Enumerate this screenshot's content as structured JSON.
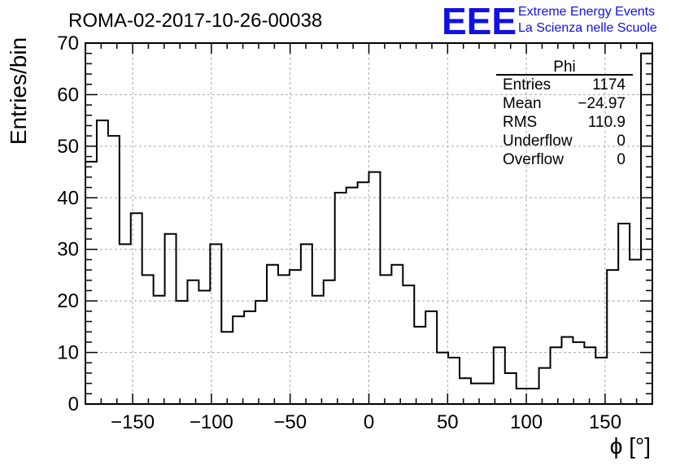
{
  "chart_data": {
    "type": "bar",
    "title": "ROMA-02-2017-10-26-00038",
    "xlabel": "ϕ [°]",
    "ylabel": "Entries/bin",
    "xlim": [
      -180,
      180
    ],
    "ylim": [
      0,
      70
    ],
    "bin_width": 7.2,
    "grid": true,
    "x_ticks": [
      -150,
      -100,
      -50,
      0,
      50,
      100,
      150
    ],
    "x_tick_labels": [
      "−150",
      "−100",
      "−50",
      "0",
      "50",
      "100",
      "150"
    ],
    "y_ticks": [
      0,
      10,
      20,
      30,
      40,
      50,
      60,
      70
    ],
    "y_tick_labels": [
      "0",
      "10",
      "20",
      "30",
      "40",
      "50",
      "60",
      "70"
    ],
    "values": [
      47,
      55,
      52,
      31,
      37,
      25,
      21,
      33,
      20,
      24,
      22,
      31,
      14,
      17,
      18,
      20,
      27,
      25,
      26,
      31,
      21,
      24,
      41,
      42,
      43,
      45,
      25,
      27,
      23,
      15,
      18,
      10,
      9,
      5,
      4,
      4,
      11,
      6,
      3,
      3,
      7,
      11,
      13,
      12,
      11,
      9,
      26,
      35,
      28,
      68
    ],
    "stats_box": {
      "title": "Phi",
      "placement": "top-right",
      "rows": [
        {
          "label": "Entries",
          "value": "1174"
        },
        {
          "label": "Mean",
          "value": "−24.97"
        },
        {
          "label": "RMS",
          "value": "110.9"
        },
        {
          "label": "Underflow",
          "value": "0"
        },
        {
          "label": "Overflow",
          "value": "0"
        }
      ]
    }
  },
  "logo": {
    "mark": "EEE",
    "line1": "Extreme Energy Events",
    "line2": "La Scienza nelle Scuole",
    "color": "#1010e6"
  }
}
